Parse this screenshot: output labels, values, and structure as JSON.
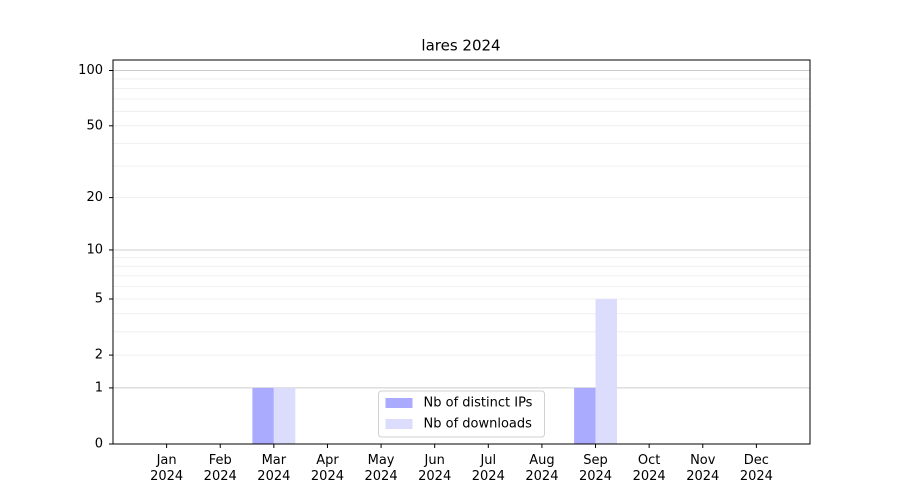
{
  "chart_data": {
    "type": "bar",
    "title": "lares 2024",
    "categories": [
      "Jan\n2024",
      "Feb\n2024",
      "Mar\n2024",
      "Apr\n2024",
      "May\n2024",
      "Jun\n2024",
      "Jul\n2024",
      "Aug\n2024",
      "Sep\n2024",
      "Oct\n2024",
      "Nov\n2024",
      "Dec\n2024"
    ],
    "series": [
      {
        "name": "Nb of distinct IPs",
        "color": "#aaaaff",
        "values": [
          0,
          0,
          1,
          0,
          0,
          0,
          0,
          0,
          1,
          0,
          0,
          0
        ]
      },
      {
        "name": "Nb of downloads",
        "color": "#dcdcfd",
        "values": [
          0,
          0,
          1,
          0,
          0,
          0,
          0,
          0,
          5,
          0,
          0,
          0
        ]
      }
    ],
    "yscale": "log1p",
    "ylim": [
      0,
      114
    ],
    "yticks": [
      0,
      1,
      2,
      5,
      10,
      20,
      50,
      100
    ],
    "ymajorgrid": [
      1,
      10,
      100
    ],
    "yminorgrid": [
      2,
      3,
      4,
      5,
      6,
      7,
      8,
      9,
      20,
      30,
      40,
      50,
      60,
      70,
      80,
      90
    ],
    "legend": "lower center"
  }
}
